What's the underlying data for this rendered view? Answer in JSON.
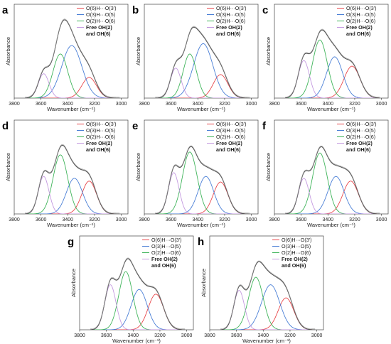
{
  "chart_data": [
    {
      "type": "line",
      "panel_label": "a",
      "xlabel": "Wavenumber (cm⁻¹)",
      "ylabel": "Absorbance",
      "x_ticks": [
        3800,
        3600,
        3400,
        3200,
        3000
      ],
      "xlim": [
        3800,
        2950
      ],
      "x_reversed": true,
      "legend_position": "top-right",
      "series": [
        {
          "name": "O(6)H···O(3')",
          "color": "#e8474b",
          "center": 3240,
          "height": 0.22,
          "width": 55
        },
        {
          "name": "O(3)H···O(5)",
          "color": "#4a7fd6",
          "center": 3370,
          "height": 0.56,
          "width": 75
        },
        {
          "name": "O(2)H···O(6)",
          "color": "#3fb45a",
          "center": 3455,
          "height": 0.47,
          "width": 55
        },
        {
          "name": "Free OH(2)\nand OH(6)",
          "color": "#c49ae0",
          "center": 3580,
          "height": 0.26,
          "width": 40
        }
      ]
    },
    {
      "type": "line",
      "panel_label": "b",
      "xlabel": "Wavenumber (cm⁻¹)",
      "ylabel": "Absorbance",
      "x_ticks": [
        3800,
        3600,
        3400,
        3200,
        3000
      ],
      "xlim": [
        3800,
        2950
      ],
      "x_reversed": true,
      "legend_position": "top-right",
      "series": [
        {
          "name": "O(6)H···O(3')",
          "color": "#e8474b",
          "center": 3230,
          "height": 0.25,
          "width": 55
        },
        {
          "name": "O(3)H···O(5)",
          "color": "#4a7fd6",
          "center": 3360,
          "height": 0.58,
          "width": 72
        },
        {
          "name": "O(2)H···O(6)",
          "color": "#3fb45a",
          "center": 3460,
          "height": 0.47,
          "width": 50
        },
        {
          "name": "Free OH(2)\nand OH(6)",
          "color": "#c49ae0",
          "center": 3565,
          "height": 0.32,
          "width": 40
        }
      ]
    },
    {
      "type": "line",
      "panel_label": "c",
      "xlabel": "Wavenumber (cm⁻¹)",
      "ylabel": "Absorbance",
      "x_ticks": [
        3800,
        3600,
        3400,
        3200,
        3000
      ],
      "xlim": [
        3800,
        2950
      ],
      "x_reversed": true,
      "legend_position": "top-right",
      "series": [
        {
          "name": "O(6)H···O(3')",
          "color": "#e8474b",
          "center": 3220,
          "height": 0.34,
          "width": 60
        },
        {
          "name": "O(3)H···O(5)",
          "color": "#4a7fd6",
          "center": 3350,
          "height": 0.44,
          "width": 60
        },
        {
          "name": "O(2)H···O(6)",
          "color": "#3fb45a",
          "center": 3460,
          "height": 0.62,
          "width": 55
        },
        {
          "name": "Free OH(2)\nand OH(6)",
          "color": "#c49ae0",
          "center": 3580,
          "height": 0.4,
          "width": 42
        }
      ]
    },
    {
      "type": "line",
      "panel_label": "d",
      "xlabel": "Wavenumber (cm⁻¹)",
      "ylabel": "Absorbance",
      "x_ticks": [
        3800,
        3600,
        3400,
        3200,
        3000
      ],
      "xlim": [
        3800,
        2950
      ],
      "x_reversed": true,
      "legend_position": "top-right",
      "series": [
        {
          "name": "O(6)H···O(3')",
          "color": "#e8474b",
          "center": 3240,
          "height": 0.35,
          "width": 55
        },
        {
          "name": "O(3)H···O(5)",
          "color": "#4a7fd6",
          "center": 3350,
          "height": 0.38,
          "width": 60
        },
        {
          "name": "O(2)H···O(6)",
          "color": "#3fb45a",
          "center": 3455,
          "height": 0.63,
          "width": 55
        },
        {
          "name": "Free OH(2)\nand OH(6)",
          "color": "#c49ae0",
          "center": 3580,
          "height": 0.4,
          "width": 40
        }
      ]
    },
    {
      "type": "line",
      "panel_label": "e",
      "xlabel": "Wavenumber (cm⁻¹)",
      "ylabel": "Absorbance",
      "x_ticks": [
        3800,
        3600,
        3400,
        3200,
        3000
      ],
      "xlim": [
        3800,
        2950
      ],
      "x_reversed": true,
      "legend_position": "top-right",
      "series": [
        {
          "name": "O(6)H···O(3')",
          "color": "#e8474b",
          "center": 3230,
          "height": 0.34,
          "width": 55
        },
        {
          "name": "O(3)H···O(5)",
          "color": "#4a7fd6",
          "center": 3340,
          "height": 0.4,
          "width": 58
        },
        {
          "name": "O(2)H···O(6)",
          "color": "#3fb45a",
          "center": 3460,
          "height": 0.66,
          "width": 55
        },
        {
          "name": "Free OH(2)\nand OH(6)",
          "color": "#c49ae0",
          "center": 3580,
          "height": 0.44,
          "width": 40
        }
      ]
    },
    {
      "type": "line",
      "panel_label": "f",
      "xlabel": "Wavenumber (cm⁻¹)",
      "ylabel": "Absorbance",
      "x_ticks": [
        3800,
        3600,
        3400,
        3200,
        3000
      ],
      "xlim": [
        3800,
        2950
      ],
      "x_reversed": true,
      "legend_position": "top-right",
      "series": [
        {
          "name": "O(6)H···O(3')",
          "color": "#e8474b",
          "center": 3230,
          "height": 0.35,
          "width": 58
        },
        {
          "name": "O(3)H···O(5)",
          "color": "#4a7fd6",
          "center": 3340,
          "height": 0.4,
          "width": 60
        },
        {
          "name": "O(2)H···O(6)",
          "color": "#3fb45a",
          "center": 3460,
          "height": 0.65,
          "width": 55
        },
        {
          "name": "Free OH(2)\nand OH(6)",
          "color": "#c49ae0",
          "center": 3580,
          "height": 0.38,
          "width": 40
        }
      ]
    },
    {
      "type": "line",
      "panel_label": "g",
      "xlabel": "Wavenumber (cm⁻¹)",
      "ylabel": "Absorbance",
      "x_ticks": [
        3800,
        3600,
        3400,
        3200,
        3000
      ],
      "xlim": [
        3800,
        2950
      ],
      "x_reversed": true,
      "legend_position": "top-right",
      "series": [
        {
          "name": "O(6)H···O(3')",
          "color": "#e8474b",
          "center": 3230,
          "height": 0.38,
          "width": 58
        },
        {
          "name": "O(3)H···O(5)",
          "color": "#4a7fd6",
          "center": 3355,
          "height": 0.43,
          "width": 60
        },
        {
          "name": "O(2)H···O(6)",
          "color": "#3fb45a",
          "center": 3455,
          "height": 0.62,
          "width": 52
        },
        {
          "name": "Free OH(2)\nand OH(6)",
          "color": "#c49ae0",
          "center": 3570,
          "height": 0.48,
          "width": 42
        }
      ]
    },
    {
      "type": "line",
      "panel_label": "h",
      "xlabel": "Wavenumber (cm⁻¹)",
      "ylabel": "Absorbance",
      "x_ticks": [
        3800,
        3600,
        3400,
        3200,
        3000
      ],
      "xlim": [
        3800,
        2950
      ],
      "x_reversed": true,
      "legend_position": "top-right",
      "series": [
        {
          "name": "O(6)H···O(3')",
          "color": "#e8474b",
          "center": 3230,
          "height": 0.34,
          "width": 58
        },
        {
          "name": "O(3)H···O(5)",
          "color": "#4a7fd6",
          "center": 3345,
          "height": 0.48,
          "width": 68
        },
        {
          "name": "O(2)H···O(6)",
          "color": "#3fb45a",
          "center": 3455,
          "height": 0.56,
          "width": 55
        },
        {
          "name": "Free OH(2)\nand OH(6)",
          "color": "#c49ae0",
          "center": 3580,
          "height": 0.42,
          "width": 40
        }
      ]
    }
  ]
}
